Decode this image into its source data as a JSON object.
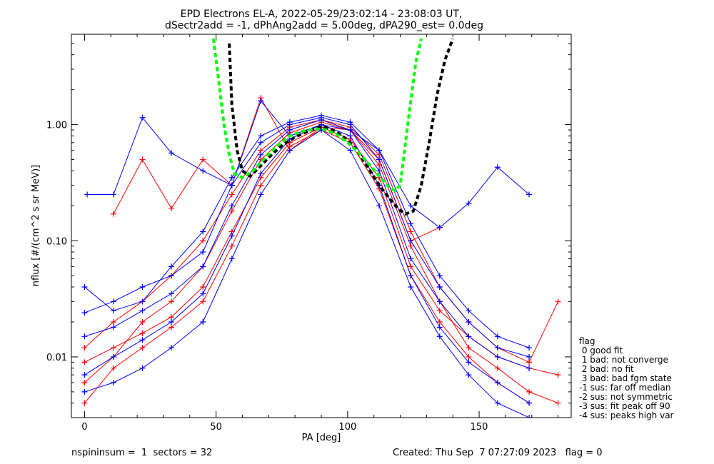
{
  "chart_data": {
    "type": "line",
    "title": [
      "EPD Electrons EL-A, 2022-05-29/23:02:14 - 23:08:03 UT,",
      "dSectr2add = -1, dPhAng2add = 5.00deg, dPA290_est=   0.0deg"
    ],
    "xlabel": "PA [deg]",
    "ylabel": "nflux [#/(cm^2 s sr MeV)]",
    "xlim": [
      -5,
      185
    ],
    "ylim": [
      0.003,
      6.0
    ],
    "yscale": "log",
    "x_ticks": [
      0,
      50,
      100,
      150
    ],
    "x_tick_labels": [
      "0",
      "50",
      "100",
      "150"
    ],
    "y_ticks": [
      0.01,
      0.1,
      1.0
    ],
    "y_tick_labels": [
      "0.01",
      "0.10",
      "1.00"
    ],
    "grid": false,
    "colors": {
      "series_a": "#ff0000",
      "series_b": "#0000ff",
      "fit_a": "#000000",
      "fit_b": "#00ff00"
    },
    "fits": [
      {
        "color": "fit_a",
        "x": [
          55,
          56,
          58,
          60,
          63,
          66,
          70,
          75,
          80,
          85,
          89,
          92,
          96,
          100,
          104,
          108,
          112,
          116,
          119,
          122,
          125,
          128,
          131,
          134,
          137,
          140
        ],
        "y": [
          5.0,
          1.5,
          0.6,
          0.4,
          0.36,
          0.42,
          0.52,
          0.66,
          0.78,
          0.88,
          0.95,
          0.94,
          0.86,
          0.74,
          0.58,
          0.42,
          0.3,
          0.23,
          0.19,
          0.17,
          0.18,
          0.3,
          0.7,
          1.8,
          3.6,
          5.5
        ]
      },
      {
        "color": "fit_b",
        "x": [
          49,
          51,
          53,
          55,
          57,
          60,
          64,
          68,
          73,
          78,
          83,
          88,
          92,
          96,
          100,
          104,
          108,
          112,
          115,
          118,
          120,
          122,
          124,
          126,
          128
        ],
        "y": [
          5.5,
          2.4,
          1.0,
          0.55,
          0.38,
          0.35,
          0.4,
          0.5,
          0.65,
          0.8,
          0.88,
          0.92,
          0.9,
          0.82,
          0.7,
          0.58,
          0.46,
          0.36,
          0.3,
          0.27,
          0.3,
          0.7,
          1.6,
          3.5,
          5.5
        ]
      }
    ],
    "series": [
      {
        "color": "series_a",
        "x": [
          0,
          11,
          22,
          33,
          45,
          56,
          67,
          78,
          90,
          101,
          112,
          124,
          135,
          146,
          157,
          169,
          180
        ],
        "y": [
          0.009,
          0.012,
          0.016,
          0.022,
          0.04,
          0.12,
          0.35,
          0.7,
          0.95,
          0.75,
          0.35,
          0.06,
          0.025,
          0.015,
          0.01,
          0.008,
          0.007
        ]
      },
      {
        "color": "series_a",
        "x": [
          0,
          11,
          22,
          33,
          45,
          56,
          67,
          78,
          90,
          101,
          112,
          124,
          135,
          146,
          157,
          169,
          180
        ],
        "y": [
          0.006,
          0.01,
          0.02,
          0.03,
          0.06,
          0.18,
          0.5,
          0.85,
          1.05,
          0.9,
          0.45,
          0.09,
          0.03,
          0.012,
          0.008,
          0.005,
          0.004
        ]
      },
      {
        "color": "series_a",
        "x": [
          11,
          22,
          33,
          45,
          56,
          67,
          78,
          90,
          101,
          112,
          124,
          135
        ],
        "y": [
          0.17,
          0.5,
          0.19,
          0.5,
          0.3,
          1.7,
          0.6,
          0.95,
          0.9,
          0.5,
          0.1,
          0.13
        ]
      },
      {
        "color": "series_a",
        "x": [
          0,
          11,
          22,
          33,
          45,
          56,
          67,
          78,
          90,
          101,
          112,
          124,
          135,
          146,
          157,
          169,
          180
        ],
        "y": [
          0.012,
          0.02,
          0.03,
          0.05,
          0.1,
          0.25,
          0.6,
          0.95,
          1.1,
          0.95,
          0.55,
          0.12,
          0.04,
          0.02,
          0.012,
          0.009,
          0.03
        ]
      },
      {
        "color": "series_a",
        "x": [
          0,
          11,
          22,
          33,
          45,
          56,
          67,
          78,
          90,
          101,
          112,
          124,
          135,
          146,
          157,
          169
        ],
        "y": [
          0.004,
          0.008,
          0.012,
          0.018,
          0.03,
          0.09,
          0.3,
          0.65,
          0.9,
          0.7,
          0.28,
          0.05,
          0.02,
          0.01,
          0.006,
          0.004
        ]
      },
      {
        "color": "series_b",
        "x": [
          0,
          11,
          22,
          33,
          45,
          56,
          67,
          78,
          90,
          101,
          112,
          124,
          135,
          146,
          157,
          169
        ],
        "y": [
          0.015,
          0.018,
          0.025,
          0.035,
          0.06,
          0.2,
          0.55,
          0.9,
          1.1,
          0.9,
          0.4,
          0.07,
          0.03,
          0.015,
          0.01,
          0.008
        ]
      },
      {
        "color": "series_b",
        "x": [
          0,
          11,
          22,
          33,
          45,
          56,
          67,
          78,
          90,
          101,
          112,
          124,
          135,
          146,
          157,
          169
        ],
        "y": [
          0.007,
          0.01,
          0.014,
          0.02,
          0.035,
          0.11,
          0.38,
          0.75,
          1.0,
          0.8,
          0.3,
          0.05,
          0.018,
          0.009,
          0.006,
          0.004
        ]
      },
      {
        "color": "series_b",
        "x": [
          0,
          11,
          22,
          33,
          45,
          56,
          67,
          78,
          90,
          101,
          112,
          124,
          135,
          146,
          157,
          169
        ],
        "y": [
          0.024,
          0.03,
          0.04,
          0.05,
          0.08,
          0.3,
          0.7,
          1.0,
          1.15,
          1.0,
          0.5,
          0.1,
          0.04,
          0.02,
          0.012,
          0.01
        ]
      },
      {
        "color": "series_b",
        "x": [
          0,
          11,
          22,
          33,
          45,
          56,
          67,
          78,
          90,
          101,
          112,
          124,
          135,
          146,
          157,
          169
        ],
        "y": [
          0.005,
          0.006,
          0.008,
          0.012,
          0.02,
          0.07,
          0.25,
          0.6,
          0.9,
          0.6,
          0.2,
          0.04,
          0.015,
          0.007,
          0.004,
          0.003
        ]
      },
      {
        "color": "series_b",
        "x": [
          1,
          11,
          22,
          33,
          45,
          56,
          67,
          78,
          90,
          101,
          112,
          124,
          135,
          146,
          157,
          169
        ],
        "y": [
          0.25,
          0.25,
          1.15,
          0.57,
          0.4,
          0.3,
          1.6,
          0.8,
          1.0,
          0.9,
          0.6,
          0.2,
          0.13,
          0.21,
          0.43,
          0.25
        ]
      },
      {
        "color": "series_b",
        "x": [
          0,
          11,
          22,
          33,
          45,
          56,
          67,
          78,
          90,
          101,
          112,
          124,
          135,
          146,
          157,
          169
        ],
        "y": [
          0.04,
          0.025,
          0.03,
          0.06,
          0.12,
          0.35,
          0.8,
          1.05,
          1.2,
          1.05,
          0.6,
          0.14,
          0.05,
          0.025,
          0.015,
          0.012
        ]
      }
    ],
    "legend": {
      "title": "flag",
      "entries": [
        " 0 good fit",
        " 1 bad: not converge",
        " 2 bad: no fit",
        " 3 bad: bad fgm state",
        "-1 sus: far off median",
        "-2 sus: not symmetric",
        "-3 sus: fit peak off 90",
        "-4 sus: peaks high var"
      ],
      "placement": "right-bottom"
    }
  },
  "footer": {
    "left": "nspininsum =  1  sectors = 32",
    "right": "Created: Thu Sep  7 07:27:09 2023   flag = 0"
  }
}
